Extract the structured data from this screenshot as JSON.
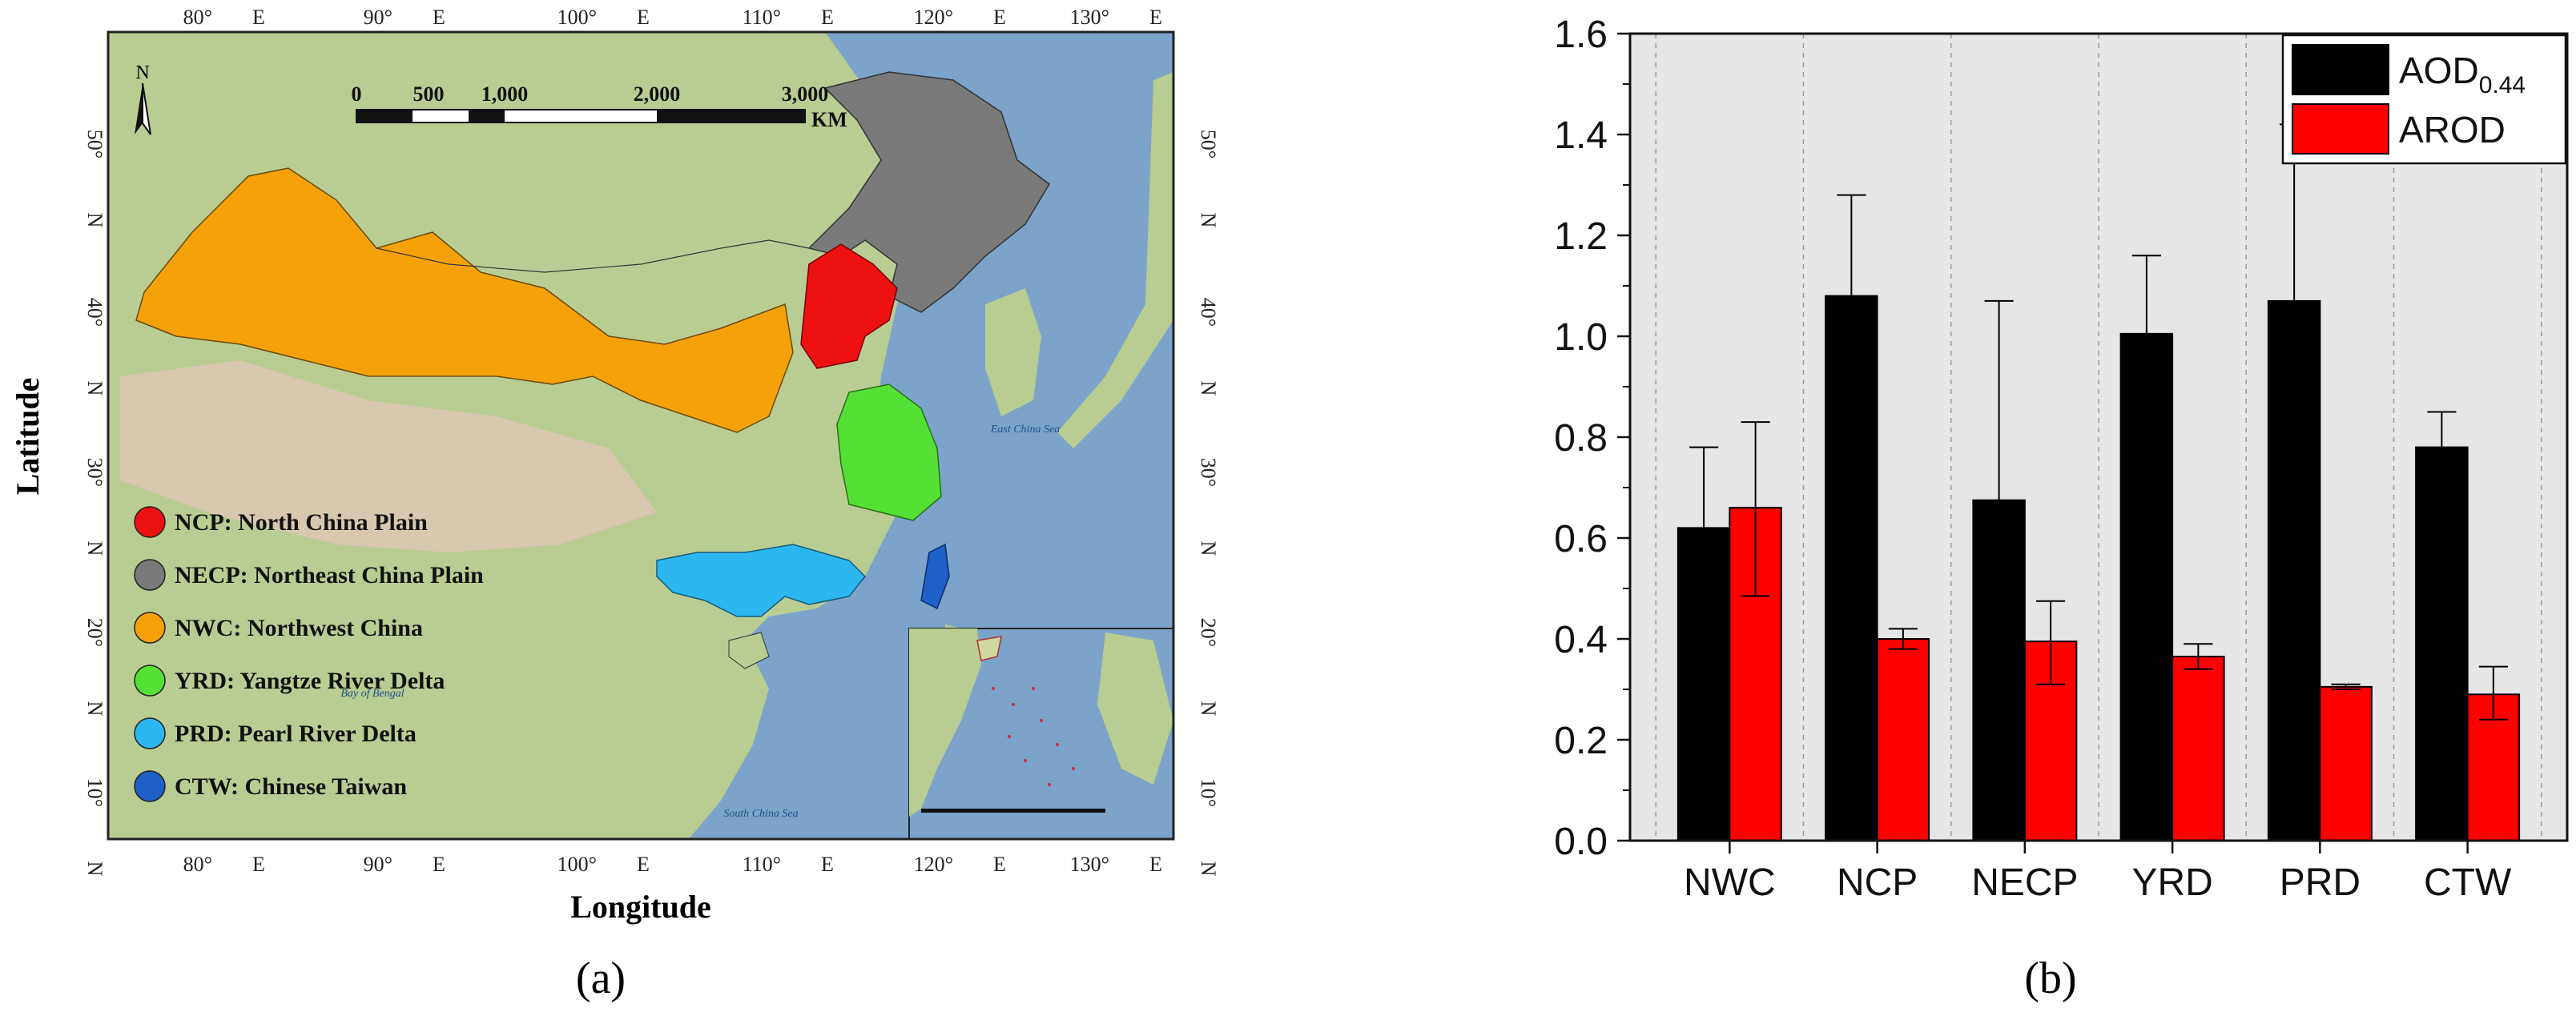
{
  "panel_labels": {
    "a": "(a)",
    "b": "(b)"
  },
  "map": {
    "xlabel": "Longitude",
    "ylabel": "Latitude",
    "north_label": "N",
    "lon_ticks": [
      "80°",
      "90°",
      "100°",
      "110°",
      "120°",
      "130°"
    ],
    "lon_suffix": "E",
    "lat_ticks": [
      "50°",
      "40°",
      "30°",
      "20°",
      "10°"
    ],
    "lat_suffix": "N",
    "scale_bar": {
      "labels": [
        "0",
        "500",
        "1,000",
        "2,000",
        "3,000"
      ],
      "unit": "KM"
    },
    "sea_labels": {
      "east_china_sea": "East China Sea",
      "bay_of_bengal": "Bay of Bengal",
      "south_china_sea": "South China Sea"
    },
    "legend": [
      {
        "label": "NCP: North China Plain",
        "color": "#ee1111"
      },
      {
        "label": "NECP: Northeast China Plain",
        "color": "#7a7a7a"
      },
      {
        "label": "NWC: Northwest China",
        "color": "#f5a20a"
      },
      {
        "label": "YRD: Yangtze River Delta",
        "color": "#55e035"
      },
      {
        "label": "PRD: Pearl River Delta",
        "color": "#2bb6f0"
      },
      {
        "label": "CTW: Chinese Taiwan",
        "color": "#1e5fc8"
      }
    ],
    "colors": {
      "ocean": "#7ca3c9",
      "land": "#b9cc92",
      "plateau": "#d8c8b0",
      "frame": "#222222"
    }
  },
  "chart_data": {
    "type": "bar",
    "categories": [
      "NWC",
      "NCP",
      "NECP",
      "YRD",
      "PRD",
      "CTW"
    ],
    "series": [
      {
        "name": "AOD0.44",
        "legend_main": "AOD",
        "legend_sub": "0.44",
        "color": "#000000",
        "values": [
          0.62,
          1.08,
          0.675,
          1.005,
          1.07,
          0.78
        ],
        "err_upper": [
          0.78,
          1.28,
          1.07,
          1.16,
          1.42,
          0.85
        ],
        "err_lower": [
          null,
          null,
          null,
          null,
          null,
          null
        ]
      },
      {
        "name": "AROD",
        "legend_main": "AROD",
        "legend_sub": "",
        "color": "#ff0000",
        "values": [
          0.66,
          0.4,
          0.395,
          0.365,
          0.305,
          0.29
        ],
        "err_upper": [
          0.83,
          0.42,
          0.475,
          0.39,
          0.31,
          0.345
        ],
        "err_lower": [
          0.485,
          0.38,
          0.31,
          0.34,
          0.3,
          0.24
        ]
      }
    ],
    "ylim": [
      0,
      1.6
    ],
    "yticks": [
      "0.0",
      "0.2",
      "0.4",
      "0.6",
      "0.8",
      "1.0",
      "1.2",
      "1.4",
      "1.6"
    ],
    "xlabel": "",
    "ylabel": "",
    "grid": "vertical dashed",
    "legend_position": "top-right",
    "background": "#e6e6e6"
  }
}
